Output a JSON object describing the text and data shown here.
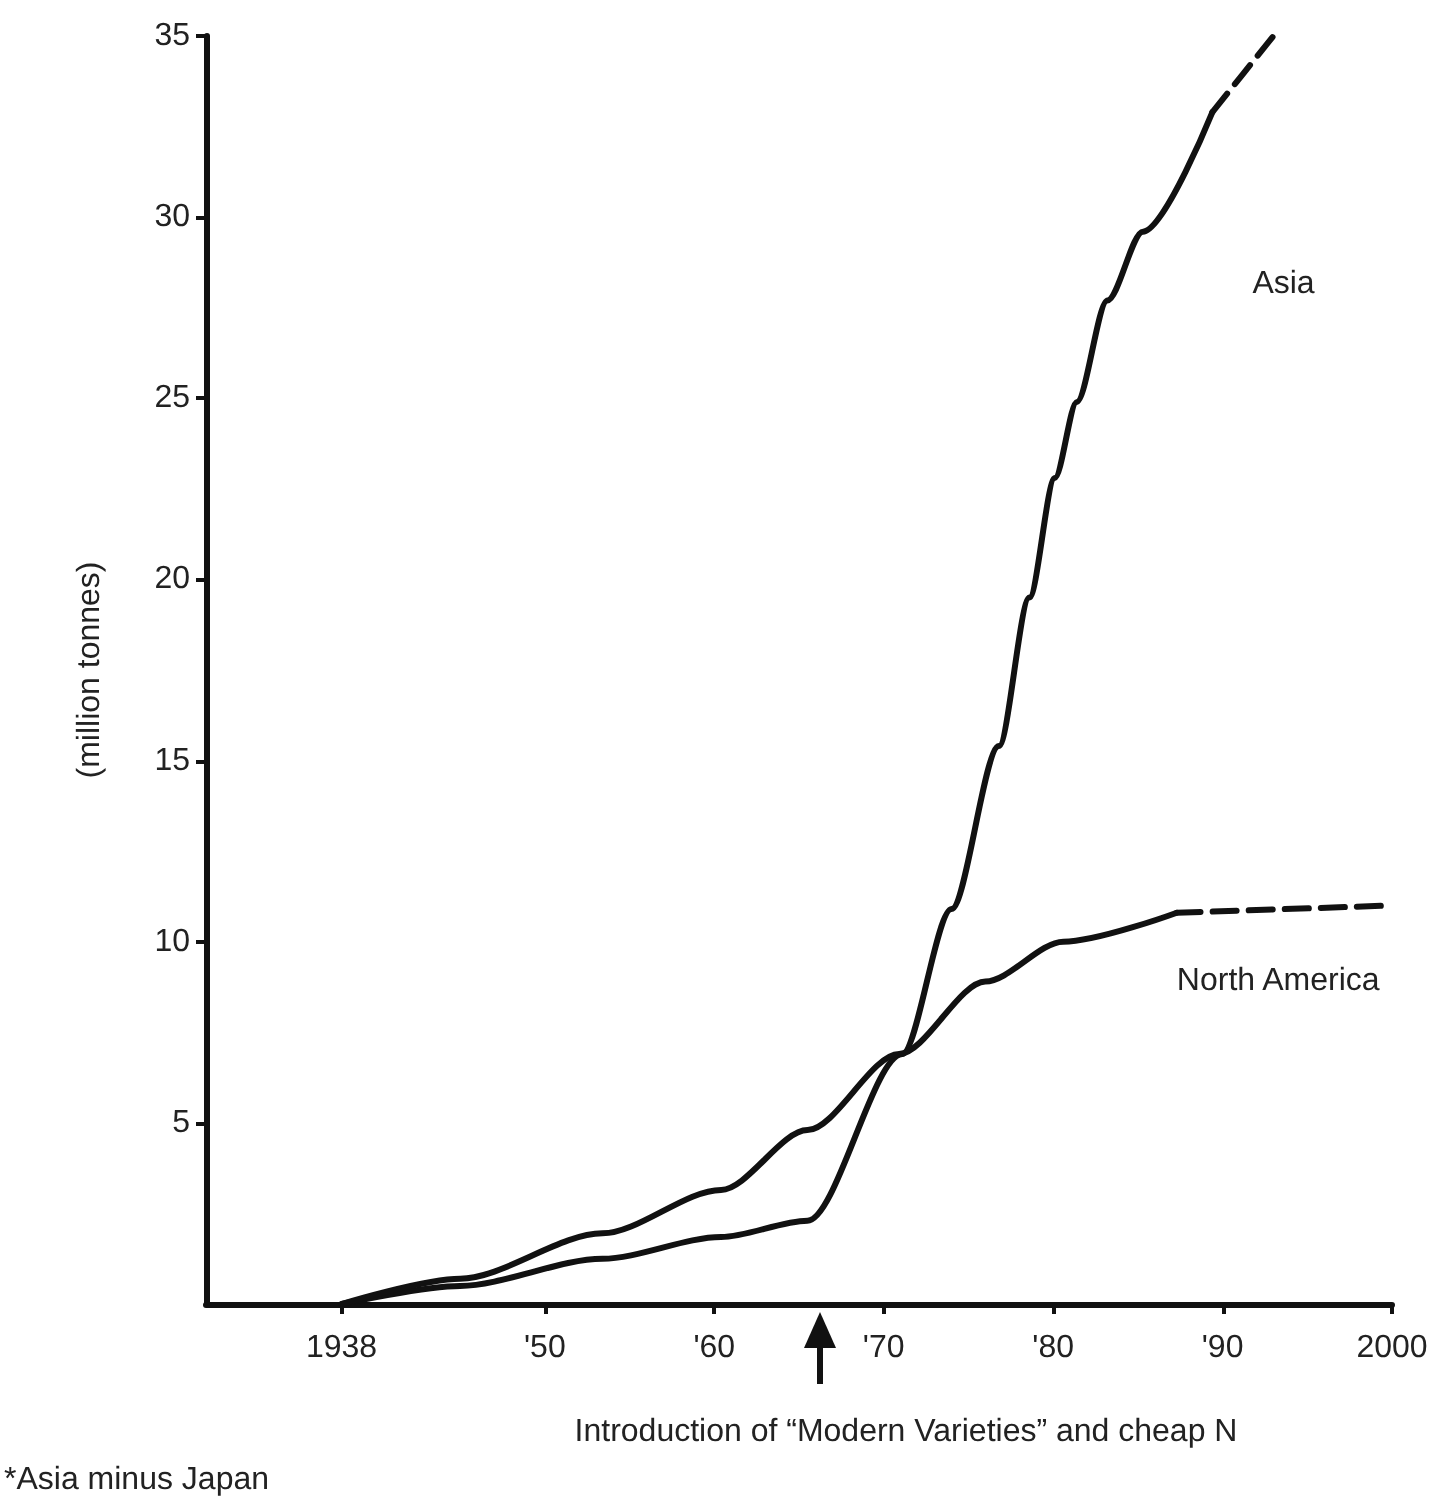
{
  "chart_data": {
    "type": "line",
    "ylabel": "(million tonnes)",
    "xlim": [
      1930,
      2000
    ],
    "ylim": [
      0,
      35
    ],
    "xticks": [
      {
        "value": 1938,
        "label": "1938"
      },
      {
        "value": 1950,
        "label": "'50"
      },
      {
        "value": 1960,
        "label": "'60"
      },
      {
        "value": 1970,
        "label": "'70"
      },
      {
        "value": 1980,
        "label": "'80"
      },
      {
        "value": 1990,
        "label": "'90"
      },
      {
        "value": 2000,
        "label": "2000"
      }
    ],
    "yticks": [
      5,
      10,
      15,
      20,
      25,
      30,
      35
    ],
    "series": [
      {
        "name": "Asia",
        "color": "#111111",
        "line_style": "solid",
        "x": [
          1938,
          1945,
          1953.4,
          1960.4,
          1965.5,
          1971.1,
          1974,
          1976.8,
          1978.6,
          1980.1,
          1981.4,
          1983.2,
          1985.3,
          1989.4
        ],
        "values": [
          0,
          0.5,
          1.25,
          1.85,
          2.3,
          6.9,
          10.9,
          15.4,
          19.5,
          22.8,
          24.9,
          27.7,
          29.6,
          32.9
        ]
      },
      {
        "color": "#111111",
        "line_style": "dashed",
        "x": [
          1989.4,
          1993
        ],
        "values": [
          32.9,
          35
        ]
      },
      {
        "name": "North America",
        "color": "#111111",
        "line_style": "solid",
        "x": [
          1938,
          1945,
          1953.4,
          1960.4,
          1965.5,
          1970.9,
          1976,
          1980.6,
          1987.3
        ],
        "values": [
          0,
          0.7,
          1.95,
          3.15,
          4.8,
          6.9,
          8.9,
          10,
          10.8
        ]
      },
      {
        "color": "#111111",
        "line_style": "dashed",
        "x": [
          1987.3,
          2000
        ],
        "values": [
          10.8,
          11
        ]
      }
    ],
    "annotations": [
      "Introduction of “Modern Varieties” and cheap N",
      "*Asia minus Japan"
    ]
  }
}
